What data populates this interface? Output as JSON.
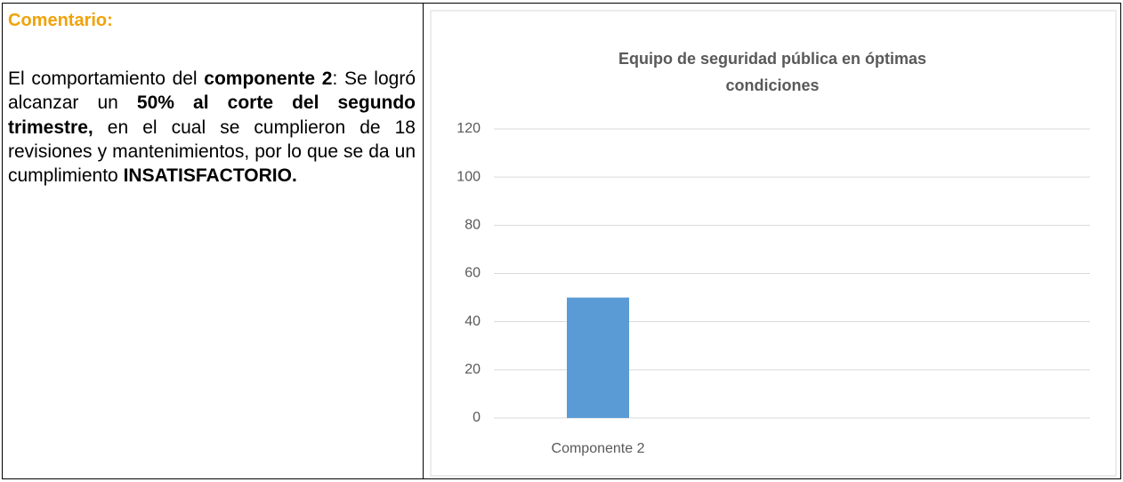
{
  "comment": {
    "heading": "Comentario:",
    "heading_color": "#f0a30a",
    "runs": [
      {
        "text": "El comportamiento del ",
        "bold": false
      },
      {
        "text": "componente 2",
        "bold": true
      },
      {
        "text": ": Se logró alcanzar un ",
        "bold": false
      },
      {
        "text": "50% al corte del segundo trimestre,",
        "bold": true
      },
      {
        "text": " en el cual se cumplieron de 18 revisiones y mantenimientos, por lo que se da un cumplimiento ",
        "bold": false
      },
      {
        "text": "INSATISFACTORIO.",
        "bold": true
      }
    ]
  },
  "chart_data": {
    "type": "bar",
    "title": "Equipo de seguridad pública en óptimas condiciones",
    "categories": [
      "Componente 2"
    ],
    "values": [
      50
    ],
    "color": "#5b9bd5",
    "ylim": [
      0,
      120
    ],
    "yticks": [
      0,
      20,
      40,
      60,
      80,
      100,
      120
    ],
    "grid": true
  }
}
